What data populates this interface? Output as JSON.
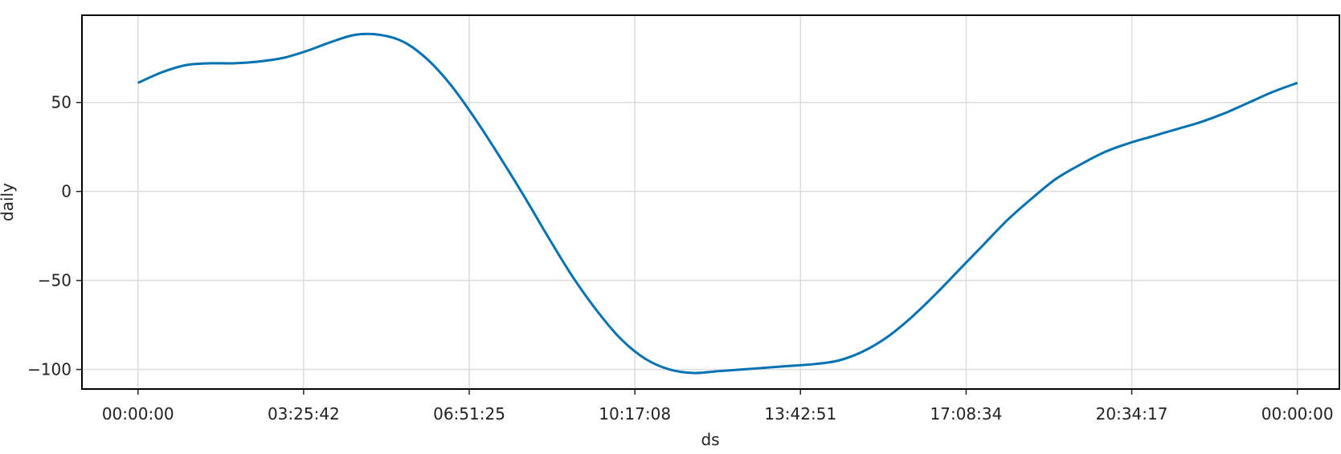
{
  "chart_data": {
    "type": "line",
    "title": "",
    "xlabel": "ds",
    "ylabel": "daily",
    "x_ticks": [
      "00:00:00",
      "03:25:42",
      "06:51:25",
      "10:17:08",
      "13:42:51",
      "17:08:34",
      "20:34:17",
      "00:00:00"
    ],
    "y_ticks": [
      50,
      0,
      -50,
      -100
    ],
    "xlim_hours": [
      -1.16,
      24.87
    ],
    "ylim": [
      -111,
      99
    ],
    "grid": true,
    "series": [
      {
        "color": "#0072b2",
        "x_hours": [
          0,
          0.5,
          1,
          1.5,
          2,
          2.5,
          3,
          3.5,
          4,
          4.5,
          5,
          5.5,
          6,
          6.5,
          7,
          7.5,
          8,
          8.5,
          9,
          9.5,
          10,
          10.5,
          11,
          11.5,
          12,
          12.5,
          13,
          13.5,
          14,
          14.5,
          15,
          15.5,
          16,
          16.5,
          17,
          17.5,
          18,
          18.5,
          19,
          19.5,
          20,
          20.5,
          21,
          21.5,
          22,
          22.5,
          23,
          23.5,
          24
        ],
        "values": [
          61,
          67,
          71,
          72,
          72,
          73,
          75,
          79,
          84,
          88,
          88,
          84,
          74,
          59,
          40,
          19,
          -3,
          -26,
          -48,
          -67,
          -83,
          -94,
          -100,
          -102,
          -101,
          -100,
          -99,
          -98,
          -97,
          -95,
          -90,
          -82,
          -71,
          -58,
          -44,
          -30,
          -16,
          -4,
          7,
          15,
          22,
          27,
          31,
          35,
          39,
          44,
          50,
          56,
          61
        ]
      }
    ]
  }
}
